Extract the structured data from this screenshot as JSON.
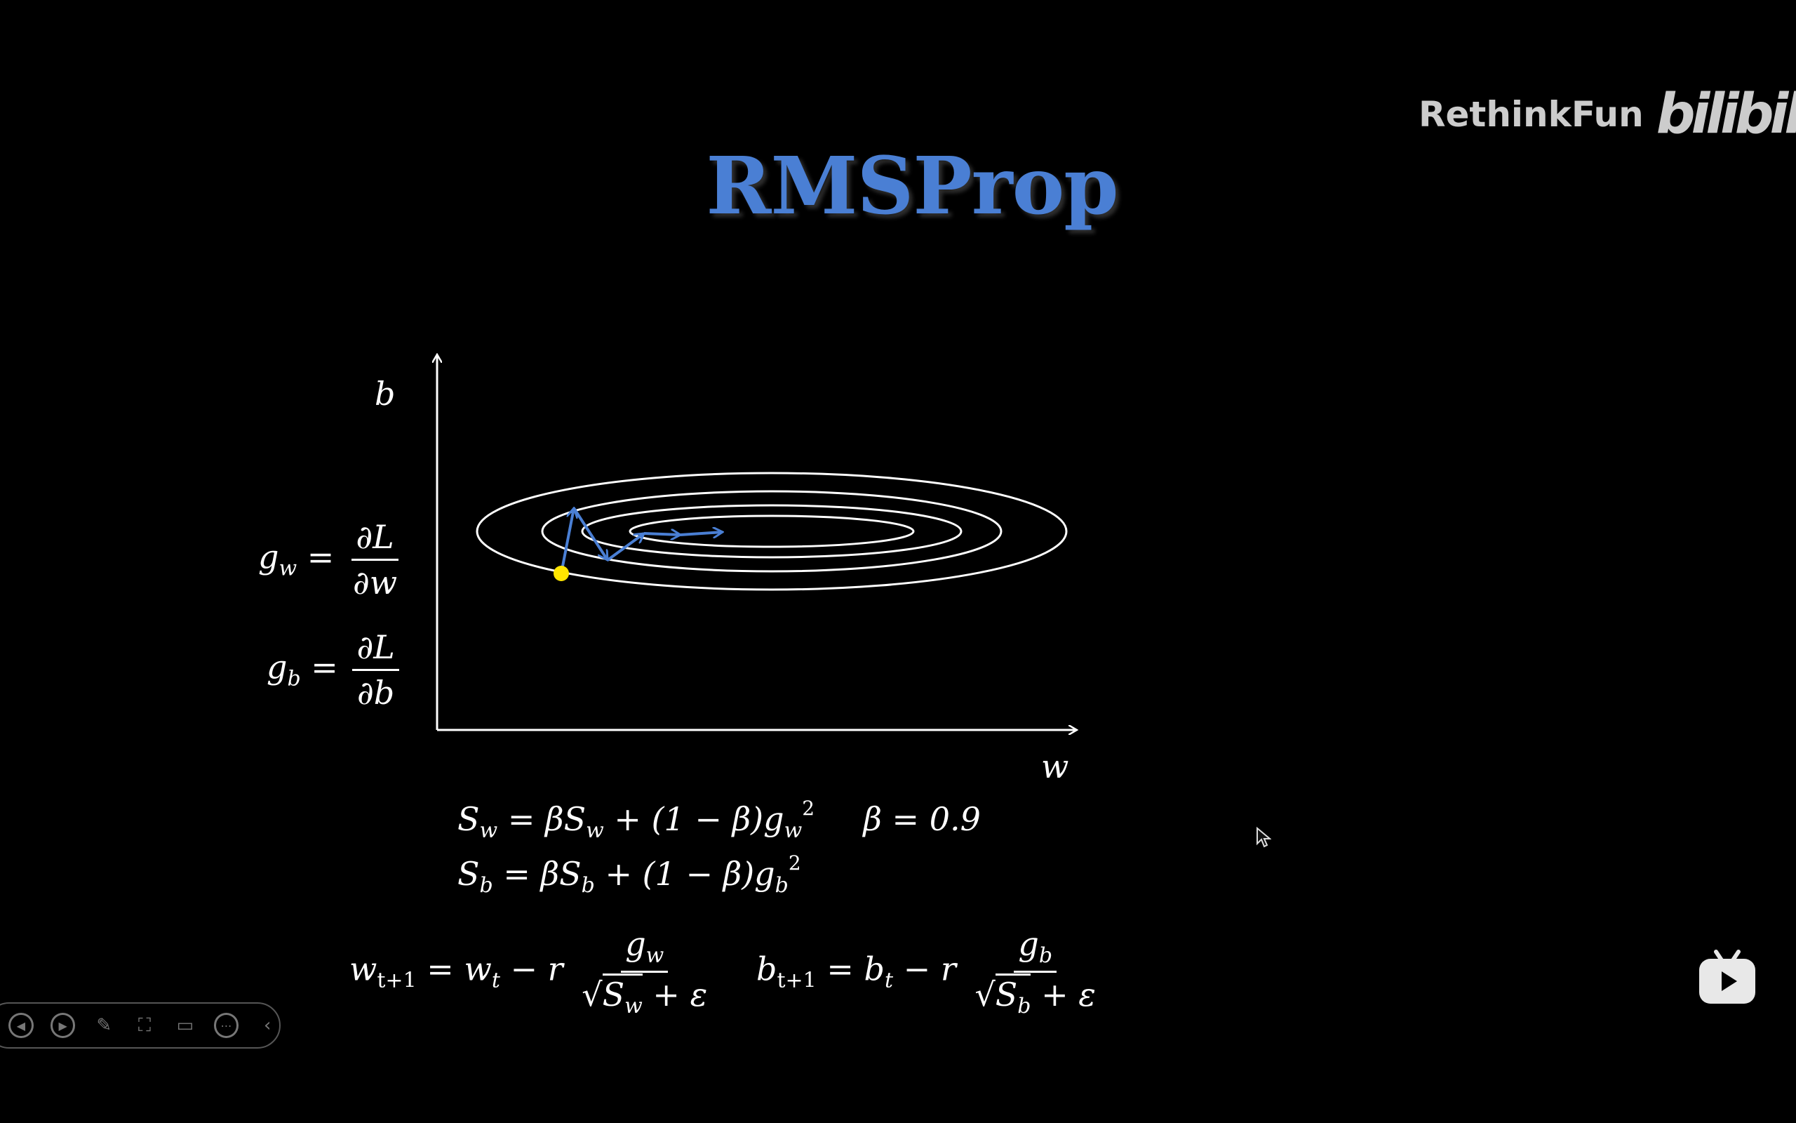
{
  "slide": {
    "title": "RMSProp"
  },
  "watermark": {
    "author": "RethinkFun",
    "brand": "bilibili"
  },
  "diagram": {
    "axis_x_label": "w",
    "axis_y_label": "b",
    "start_point_color": "#ffe600",
    "path_color": "#4a7fd4",
    "contour_color": "#ffffff"
  },
  "formulas": {
    "gw": {
      "lhs": "g",
      "sub": "w",
      "eq": "=",
      "num": "∂L",
      "den": "∂w"
    },
    "gb": {
      "lhs": "g",
      "sub": "b",
      "eq": "=",
      "num": "∂L",
      "den": "∂b"
    },
    "sw": {
      "text_a": "S",
      "sub_a": "w",
      "text_b": " = βS",
      "sub_b": "w",
      "text_c": " + (1 − β)g",
      "sub_c": "w",
      "sup_c": "2",
      "beta": "β = 0.9"
    },
    "sb": {
      "text_a": "S",
      "sub_a": "b",
      "text_b": " = βS",
      "sub_b": "b",
      "text_c": " + (1 − β)g",
      "sub_c": "b",
      "sup_c": "2"
    },
    "w_update": {
      "lhs": "w",
      "lhs_sub": "t+1",
      "mid": " = w",
      "mid_sub": "t",
      "minus": " − r",
      "num": "g",
      "num_sub": "w",
      "den": "S",
      "den_sub": "w",
      "den_tail": " + ε"
    },
    "b_update": {
      "lhs": "b",
      "lhs_sub": "t+1",
      "mid": " = b",
      "mid_sub": "t",
      "minus": " − r",
      "num": "g",
      "num_sub": "b",
      "den": "S",
      "den_sub": "b",
      "den_tail": " + ε"
    }
  },
  "toolbar": {
    "icons": [
      "prev-icon",
      "next-icon",
      "pen-icon",
      "screenshot-icon",
      "camera-icon",
      "more-icon",
      "collapse-icon"
    ]
  },
  "player": {
    "icon": "bilibili-tv-icon"
  }
}
